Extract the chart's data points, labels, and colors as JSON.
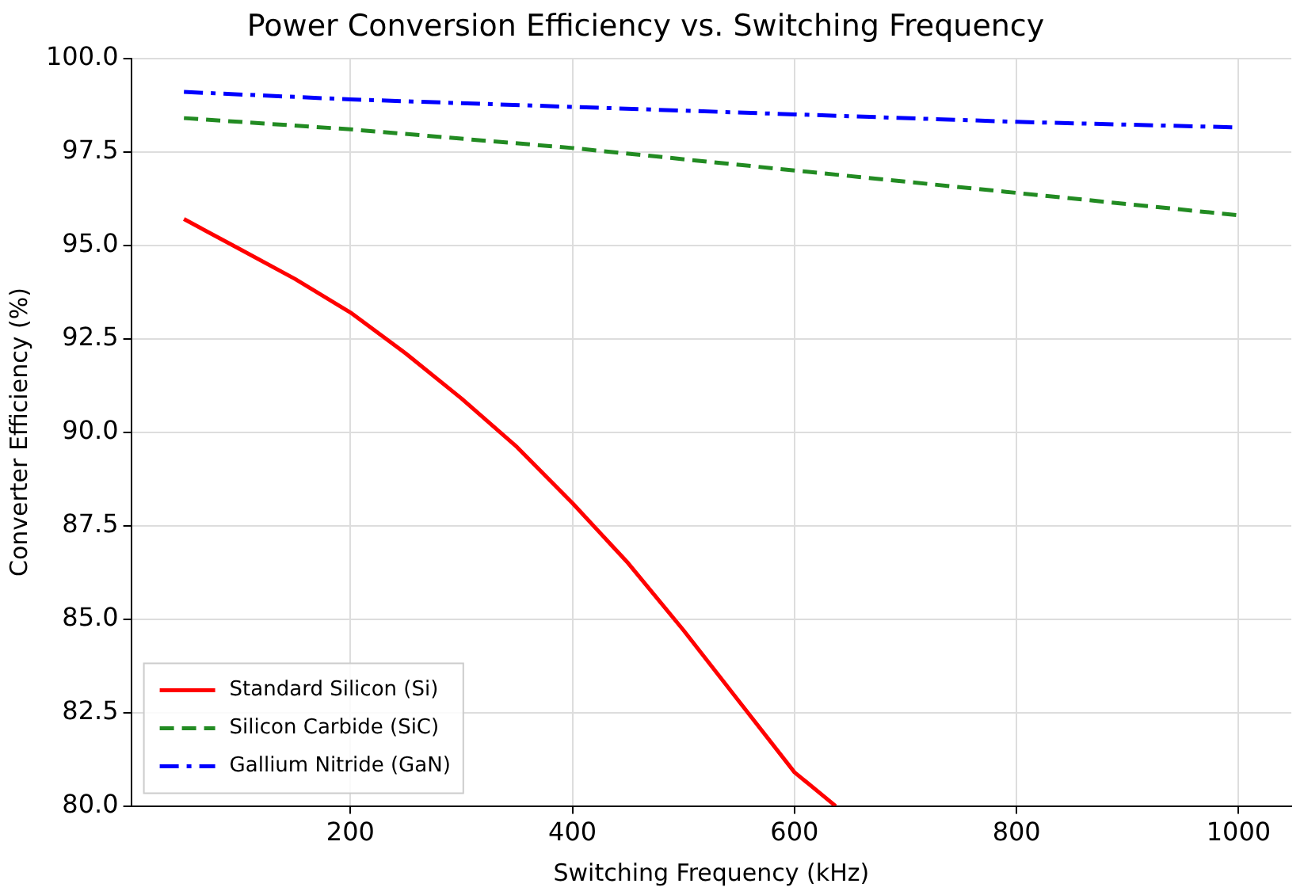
{
  "chart_data": {
    "type": "line",
    "title": "Power Conversion Efficiency vs. Switching Frequency",
    "xlabel": "Switching Frequency (kHz)",
    "ylabel": "Converter Efficiency (%)",
    "xlim": [
      2.5,
      1047.5
    ],
    "xticks": [
      200,
      400,
      600,
      800,
      1000
    ],
    "ylim": [
      80,
      100
    ],
    "yticks": [
      {
        "value": 80,
        "label": "80.0"
      },
      {
        "value": 82.5,
        "label": "82.5"
      },
      {
        "value": 85,
        "label": "85.0"
      },
      {
        "value": 87.5,
        "label": "87.5"
      },
      {
        "value": 90,
        "label": "90.0"
      },
      {
        "value": 92.5,
        "label": "92.5"
      },
      {
        "value": 95,
        "label": "95.0"
      },
      {
        "value": 97.5,
        "label": "97.5"
      },
      {
        "value": 100,
        "label": "100.0"
      }
    ],
    "grid": true,
    "legend": "bottom left",
    "marker": "none",
    "series": [
      {
        "name": "Standard Silicon (Si)",
        "color": "#ff0000",
        "line_style": "solid",
        "x": [
          50,
          100,
          150,
          200,
          250,
          300,
          350,
          400,
          450,
          500,
          550,
          600,
          637
        ],
        "values": [
          95.7,
          94.9,
          94.1,
          93.2,
          92.1,
          90.9,
          89.6,
          88.1,
          86.5,
          84.7,
          82.8,
          80.9,
          80.0
        ]
      },
      {
        "name": "Silicon Carbide (SiC)",
        "color": "#228b22",
        "line_style": "dashed",
        "x": [
          50,
          200,
          400,
          600,
          800,
          1000
        ],
        "values": [
          98.4,
          98.1,
          97.6,
          97.0,
          96.4,
          95.8
        ]
      },
      {
        "name": "Gallium Nitride (GaN)",
        "color": "#0000ff",
        "line_style": "dashdot",
        "x": [
          50,
          200,
          400,
          600,
          800,
          1000
        ],
        "values": [
          99.1,
          98.9,
          98.7,
          98.5,
          98.3,
          98.15
        ]
      }
    ]
  }
}
